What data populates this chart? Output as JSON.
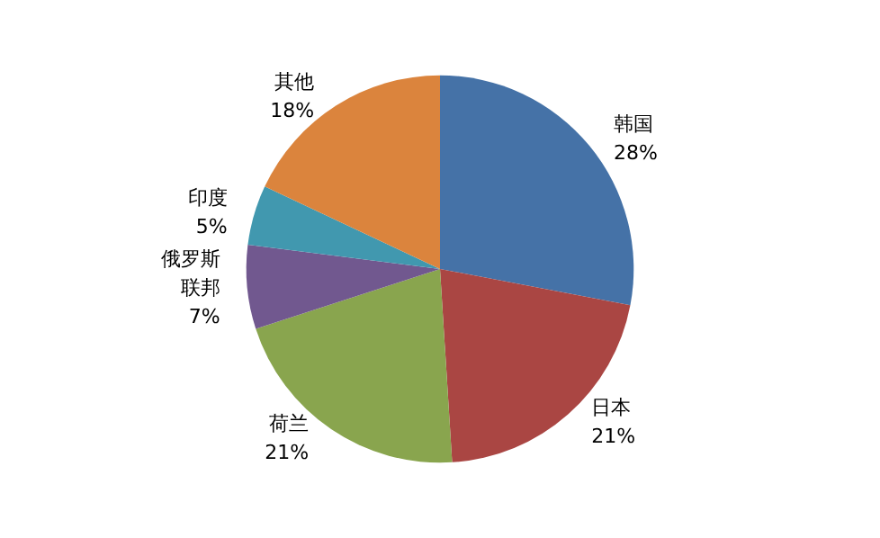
{
  "chart_data": {
    "type": "pie",
    "categories": [
      "韩国",
      "日本",
      "荷兰",
      "俄罗斯联邦",
      "印度",
      "其他"
    ],
    "values": [
      28,
      21,
      21,
      7,
      5,
      18
    ],
    "value_labels": [
      "28%",
      "21%",
      "21%",
      "7%",
      "5%",
      "18%"
    ],
    "colors": [
      "#4572a7",
      "#aa4643",
      "#89a54e",
      "#71588f",
      "#4198af",
      "#db843d"
    ],
    "legend": false
  }
}
